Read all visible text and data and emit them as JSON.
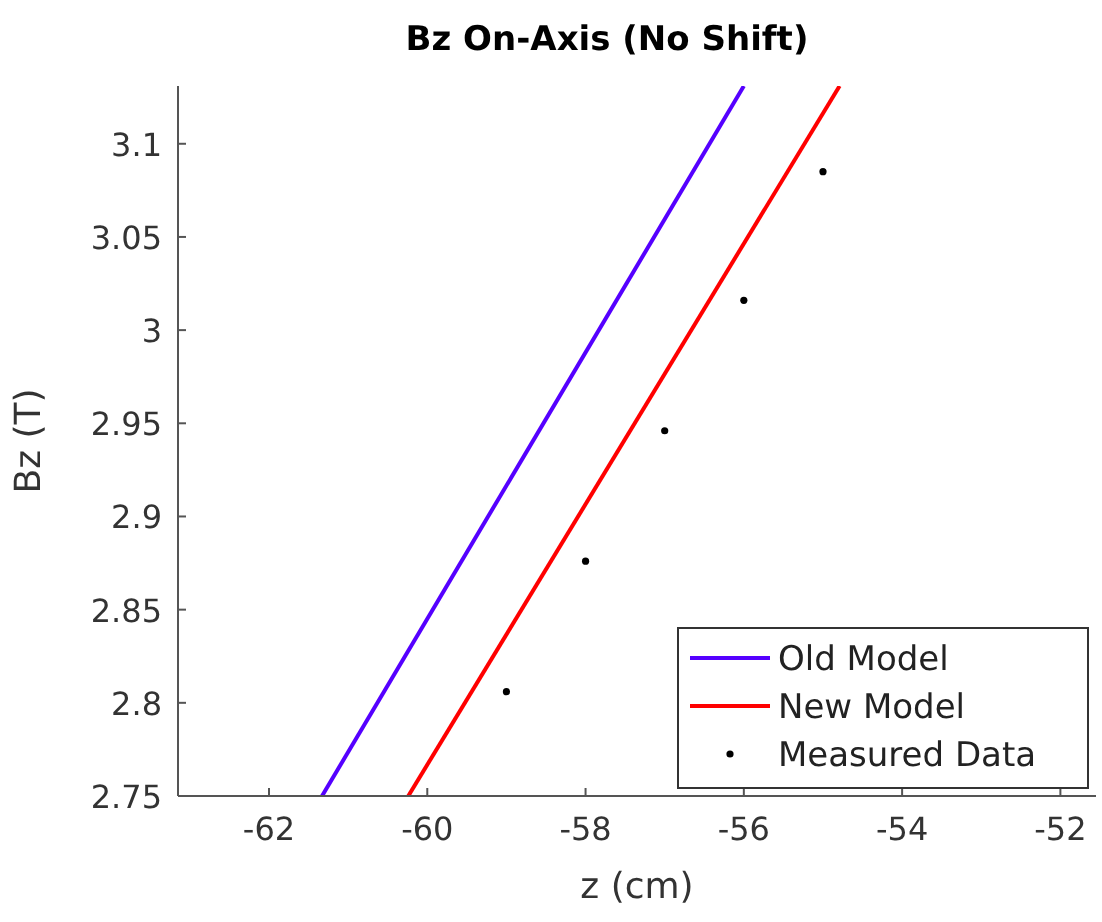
{
  "chart_data": {
    "type": "line",
    "title": "Bz On-Axis (No Shift)",
    "xlabel": "z (cm)",
    "ylabel": "Bz (T)",
    "xlim": [
      -63.15,
      -51.55
    ],
    "xticks": [
      -62,
      -60,
      -58,
      -56,
      -54,
      -52
    ],
    "ylim": [
      2.75,
      3.131
    ],
    "yticks": [
      2.75,
      2.8,
      2.85,
      2.9,
      2.95,
      3,
      3.05,
      3.1
    ],
    "grid": false,
    "legend": "bottom right",
    "series": [
      {
        "name": "Old Model",
        "color": "#5500ff",
        "type": "line",
        "x": [
          -61.33,
          -56.0
        ],
        "values": [
          2.75,
          3.131
        ]
      },
      {
        "name": "New Model",
        "color": "#ff0000",
        "type": "line",
        "x": [
          -60.24,
          -54.79
        ],
        "values": [
          2.75,
          3.131
        ]
      },
      {
        "name": "Measured Data",
        "color": "#000000",
        "type": "scatter",
        "marker": "circle",
        "x": [
          -59,
          -58,
          -57,
          -56,
          -55
        ],
        "values": [
          2.806,
          2.876,
          2.946,
          3.016,
          3.085
        ]
      }
    ]
  }
}
